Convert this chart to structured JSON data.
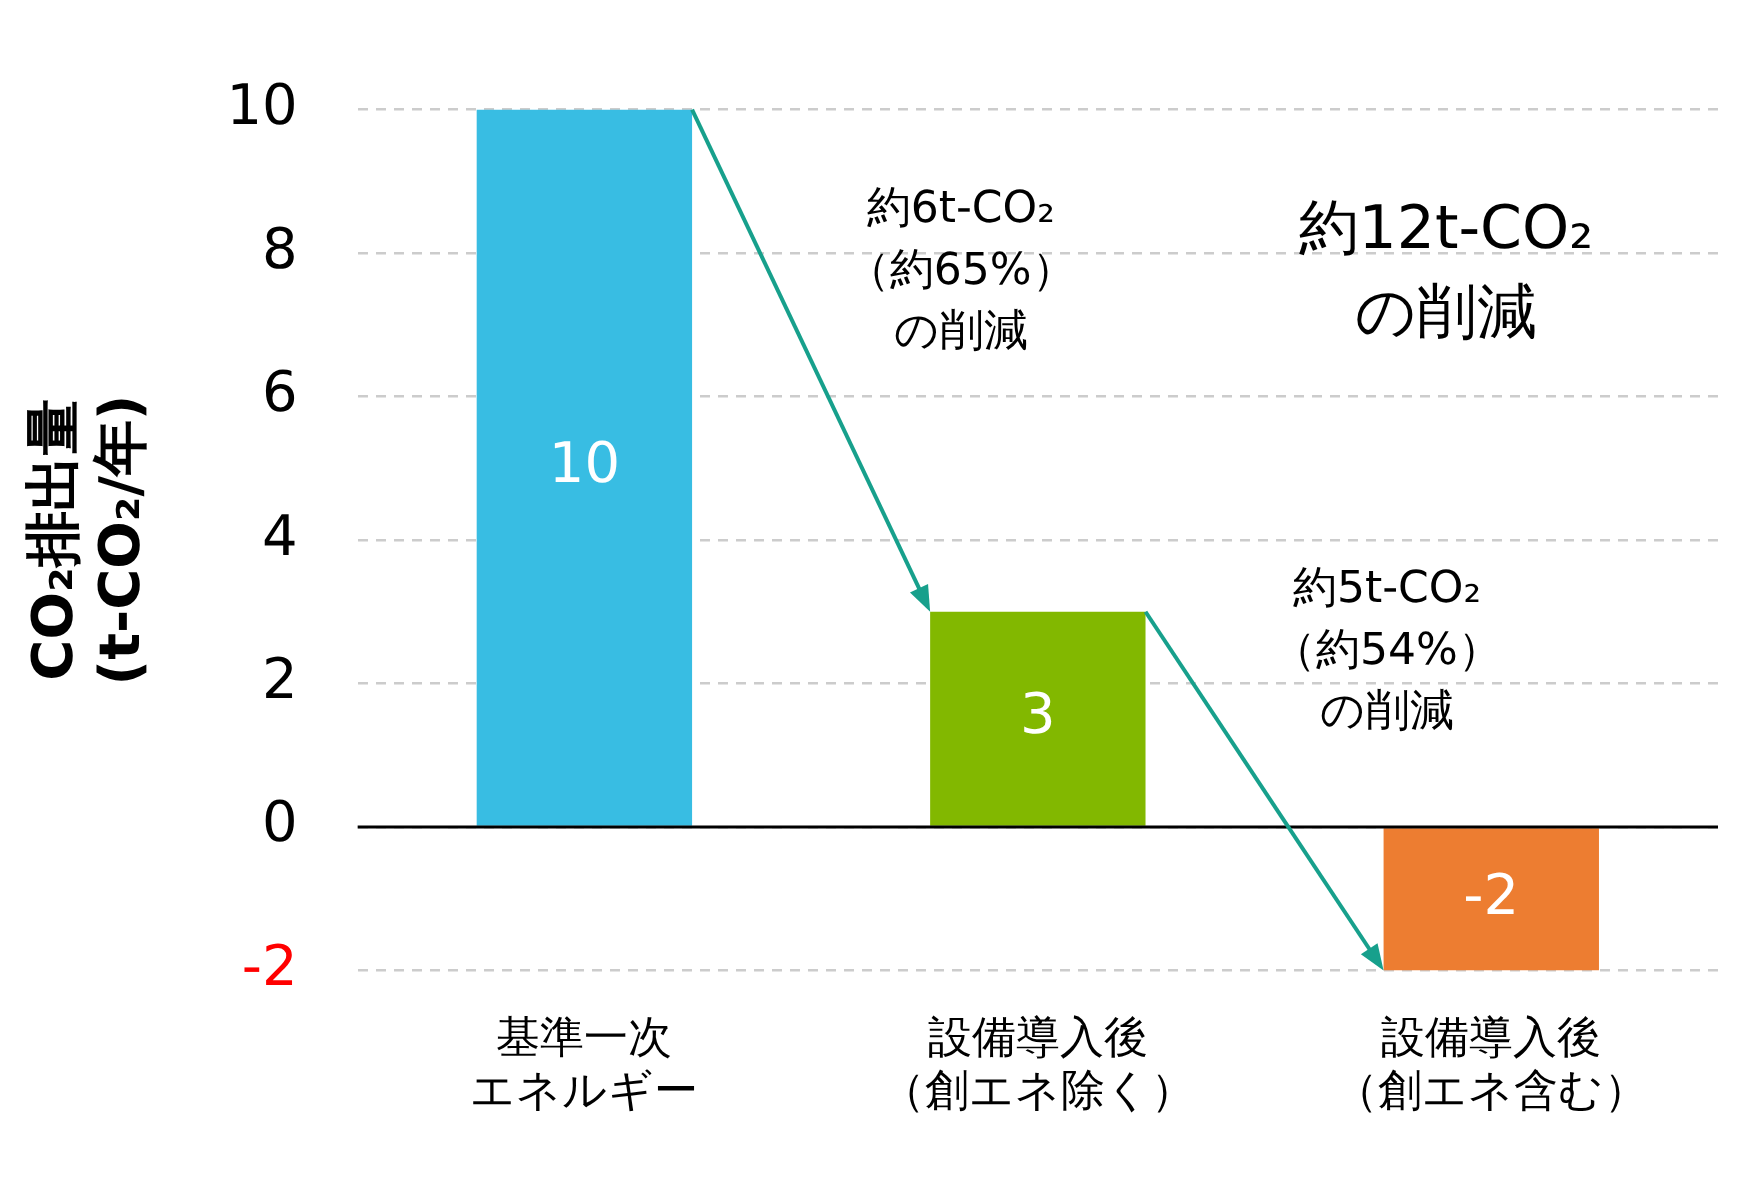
{
  "chart_data": {
    "type": "bar",
    "categories": [
      "基準一次エネルギー",
      "設備導入後（創エネ除く）",
      "設備導入後（創エネ含む）"
    ],
    "values": [
      10,
      3,
      -2
    ],
    "colors": [
      "#38bde3",
      "#82b800",
      "#ed7d31"
    ],
    "ylabel": "CO₂排出量\n(t-CO₂/年)",
    "ylim": [
      -2,
      10
    ],
    "yticks": [
      -2,
      0,
      2,
      4,
      6,
      8,
      10
    ],
    "grid": "y",
    "data_labels": true,
    "legend": false,
    "annotations": [
      "約6t-CO₂（約65%）の削減",
      "約12t-CO₂の削減",
      "約5t-CO₂（約54%）の削減"
    ]
  }
}
